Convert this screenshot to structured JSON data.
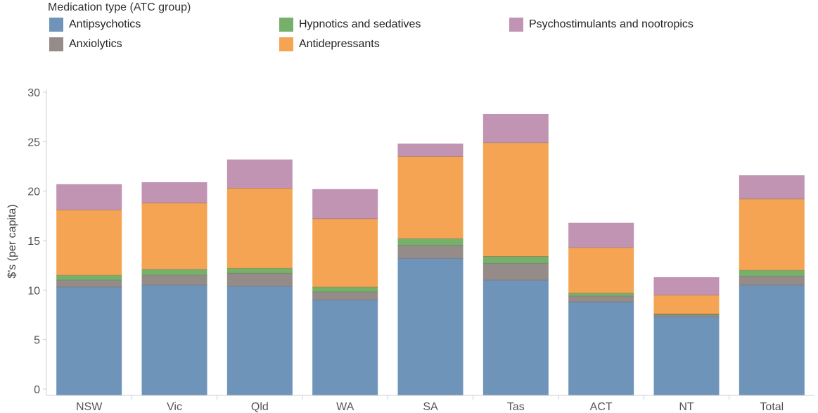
{
  "legend": {
    "title": "Medication type (ATC group)",
    "items": [
      {
        "label": "Antipsychotics",
        "color": "#6f94b9"
      },
      {
        "label": "Anxiolytics",
        "color": "#958c89"
      },
      {
        "label": "Hypnotics and sedatives",
        "color": "#76b06a"
      },
      {
        "label": "Antidepressants",
        "color": "#f5a454"
      },
      {
        "label": "Psychostimulants and nootropics",
        "color": "#c094b2"
      }
    ]
  },
  "chart_data": {
    "type": "bar",
    "stacked": true,
    "ylabel": "$'s (per capita)",
    "xlabel": "",
    "ylim": [
      0,
      30
    ],
    "yticks": [
      0,
      5,
      10,
      15,
      20,
      25,
      30
    ],
    "categories": [
      "NSW",
      "Vic",
      "Qld",
      "WA",
      "SA",
      "Tas",
      "ACT",
      "NT",
      "Total"
    ],
    "series": [
      {
        "name": "Antipsychotics",
        "color": "#6f94b9",
        "values": [
          10.3,
          10.5,
          10.4,
          9.0,
          13.2,
          11.0,
          8.8,
          7.3,
          10.5
        ]
      },
      {
        "name": "Anxiolytics",
        "color": "#958c89",
        "values": [
          0.7,
          1.0,
          1.3,
          0.8,
          1.3,
          1.7,
          0.6,
          0.2,
          0.9
        ]
      },
      {
        "name": "Hypnotics and sedatives",
        "color": "#76b06a",
        "values": [
          0.5,
          0.6,
          0.5,
          0.5,
          0.7,
          0.7,
          0.3,
          0.1,
          0.6
        ]
      },
      {
        "name": "Antidepressants",
        "color": "#f5a454",
        "values": [
          6.6,
          6.7,
          8.1,
          6.9,
          8.3,
          11.5,
          4.6,
          1.9,
          7.2
        ]
      },
      {
        "name": "Psychostimulants and nootropics",
        "color": "#c094b2",
        "values": [
          2.6,
          2.1,
          2.9,
          3.0,
          1.3,
          2.9,
          2.5,
          1.8,
          2.4
        ]
      }
    ],
    "grid": false,
    "legend_position": "top"
  }
}
